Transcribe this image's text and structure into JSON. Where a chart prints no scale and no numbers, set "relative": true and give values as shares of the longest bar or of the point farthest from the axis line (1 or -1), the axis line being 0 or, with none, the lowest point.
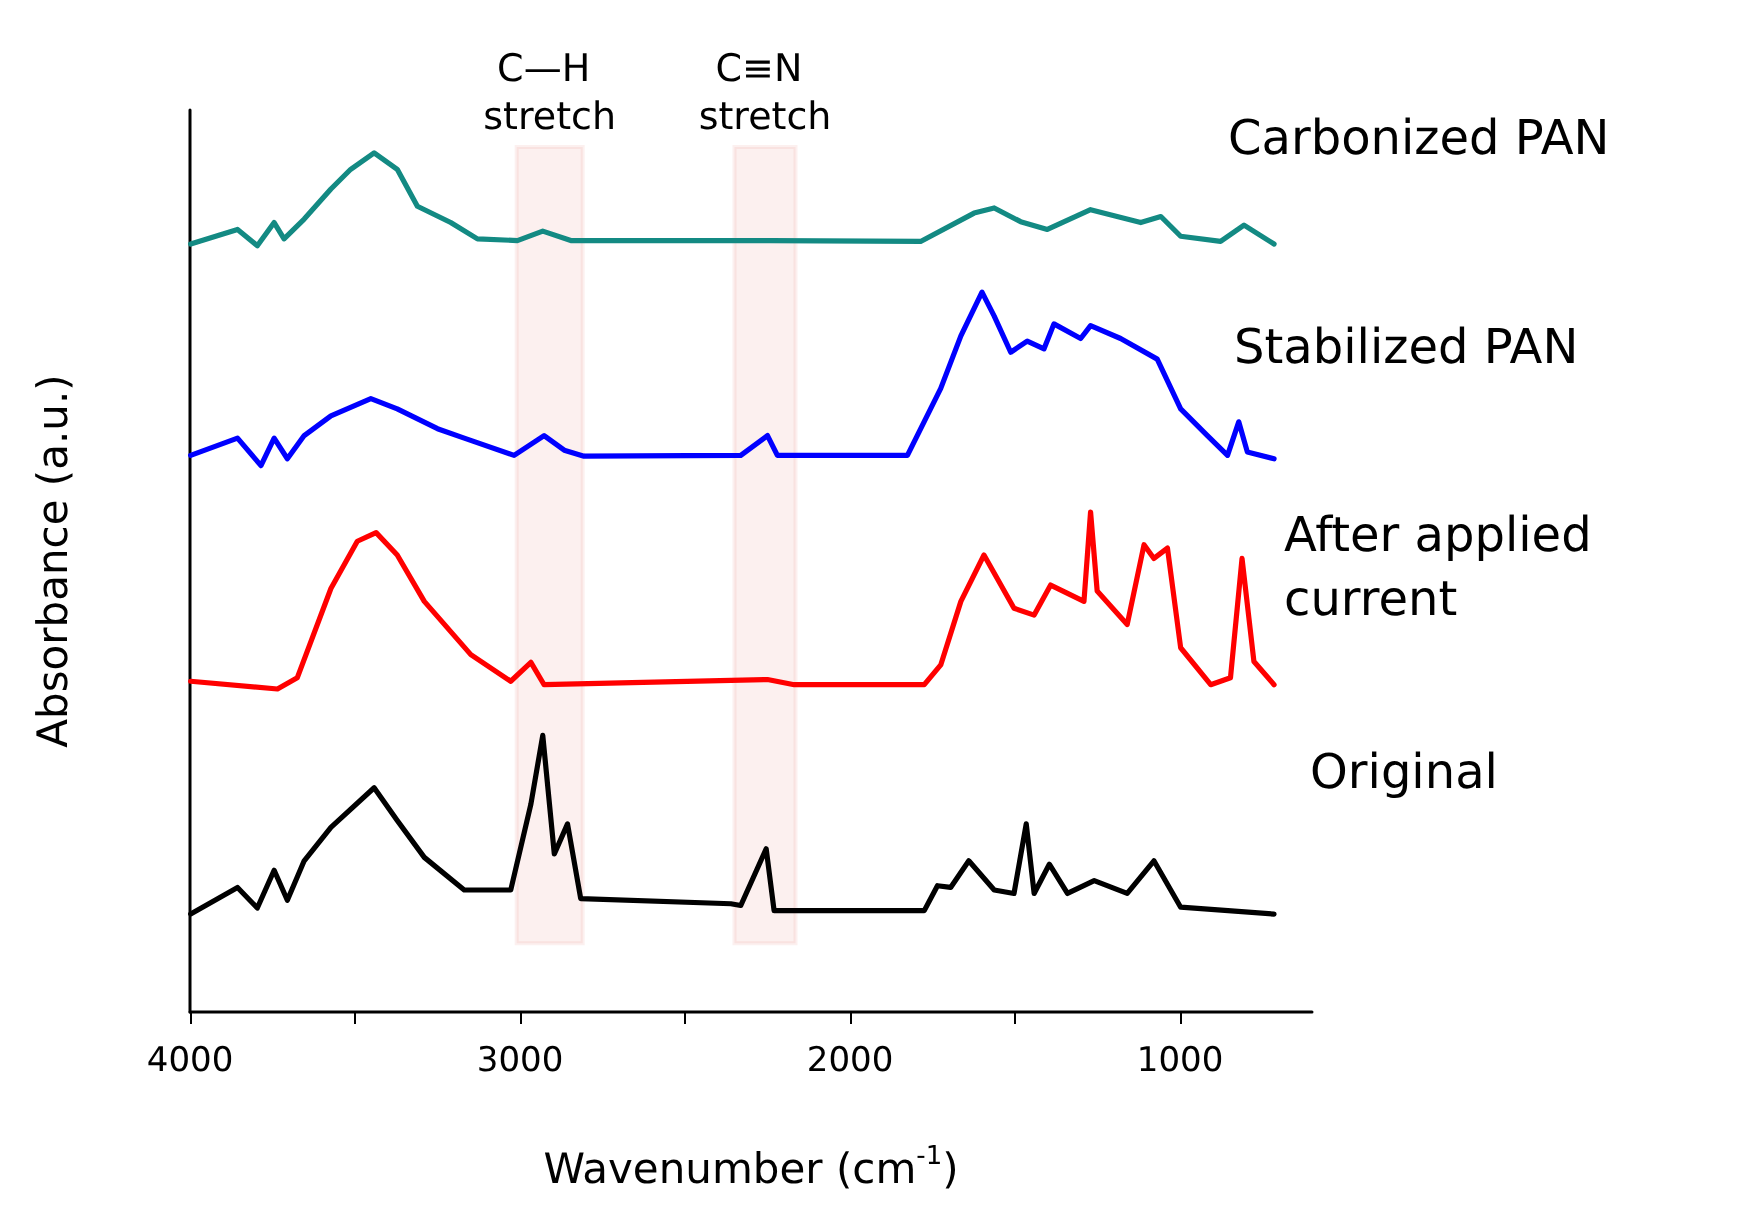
{
  "chart_data": {
    "type": "line",
    "relative": true,
    "xlabel": "Wavenumber (cm$^{-1}$)",
    "ylabel": "Absorbance (a.u.)",
    "xlim": [
      4000,
      600
    ],
    "xticks": [
      4000,
      {
        "value": 3500,
        "label": null
      },
      3000,
      {
        "value": 2500,
        "label": null
      },
      2000,
      {
        "value": 1500,
        "label": null
      },
      1000
    ],
    "grid": false,
    "legend": false,
    "marker": "none",
    "line_style": "solid",
    "bands": [
      {
        "axis": "x",
        "from": 3010,
        "to": 2810,
        "label": "C—H stretch",
        "color": "#d42a1a"
      },
      {
        "axis": "x",
        "from": 2350,
        "to": 2165,
        "label": "C≡N stretch",
        "color": "#d42a1a"
      }
    ],
    "series": [
      {
        "name": "Carbonized PAN",
        "color": "#138a83",
        "x": [
          3998,
          3856,
          3796,
          3745,
          3715,
          3654,
          3573,
          3513,
          3442,
          3372,
          3311,
          3210,
          3129,
          3008,
          2931,
          2846,
          2240,
          1786,
          1624,
          1563,
          1483,
          1402,
          1271,
          1119,
          1058,
          998,
          877,
          806,
          715
        ],
        "values": [
          0.894,
          0.911,
          0.892,
          0.919,
          0.9,
          0.923,
          0.958,
          0.981,
          1.0,
          0.981,
          0.938,
          0.919,
          0.9,
          0.898,
          0.909,
          0.898,
          0.898,
          0.897,
          0.93,
          0.936,
          0.92,
          0.911,
          0.934,
          0.919,
          0.926,
          0.903,
          0.897,
          0.916,
          0.894
        ]
      },
      {
        "name": "Stabilized PAN",
        "color": "#0000ff",
        "x": [
          3998,
          3856,
          3785,
          3745,
          3705,
          3654,
          3573,
          3452,
          3372,
          3250,
          3169,
          3018,
          2927,
          2866,
          2806,
          2331,
          2250,
          2220,
          1826,
          1725,
          1664,
          1600,
          1563,
          1513,
          1463,
          1412,
          1382,
          1301,
          1271,
          1180,
          1069,
          998,
          917,
          856,
          822,
          796,
          715
        ],
        "values": [
          0.648,
          0.668,
          0.636,
          0.668,
          0.644,
          0.671,
          0.694,
          0.714,
          0.702,
          0.679,
          0.668,
          0.648,
          0.671,
          0.654,
          0.647,
          0.648,
          0.671,
          0.648,
          0.648,
          0.726,
          0.787,
          0.838,
          0.81,
          0.768,
          0.781,
          0.772,
          0.801,
          0.784,
          0.799,
          0.784,
          0.76,
          0.702,
          0.671,
          0.648,
          0.687,
          0.652,
          0.644
        ]
      },
      {
        "name": "After applied current",
        "color": "#ff0000",
        "x": [
          3998,
          3735,
          3675,
          3573,
          3493,
          3436,
          3372,
          3290,
          3149,
          3028,
          2967,
          2927,
          2250,
          2169,
          1775,
          1725,
          1664,
          1594,
          1503,
          1442,
          1392,
          1291,
          1271,
          1251,
          1160,
          1109,
          1079,
          1038,
          998,
          907,
          847,
          812,
          776,
          715
        ],
        "values": [
          0.385,
          0.376,
          0.389,
          0.493,
          0.548,
          0.558,
          0.532,
          0.478,
          0.416,
          0.385,
          0.407,
          0.381,
          0.387,
          0.381,
          0.381,
          0.404,
          0.478,
          0.532,
          0.47,
          0.462,
          0.497,
          0.478,
          0.582,
          0.49,
          0.451,
          0.544,
          0.528,
          0.54,
          0.424,
          0.381,
          0.389,
          0.528,
          0.408,
          0.381
        ]
      },
      {
        "name": "Original",
        "color": "#000000",
        "x": [
          3998,
          3856,
          3796,
          3745,
          3705,
          3654,
          3573,
          3442,
          3372,
          3290,
          3169,
          3028,
          2967,
          2931,
          2896,
          2856,
          2816,
          2361,
          2331,
          2254,
          2230,
          1775,
          1735,
          1695,
          1640,
          1563,
          1503,
          1466,
          1442,
          1396,
          1341,
          1260,
          1160,
          1079,
          998,
          715
        ],
        "values": [
          0.114,
          0.145,
          0.121,
          0.165,
          0.13,
          0.176,
          0.215,
          0.261,
          0.223,
          0.18,
          0.142,
          0.142,
          0.242,
          0.322,
          0.184,
          0.219,
          0.132,
          0.126,
          0.124,
          0.19,
          0.118,
          0.118,
          0.147,
          0.145,
          0.176,
          0.142,
          0.138,
          0.219,
          0.138,
          0.172,
          0.138,
          0.153,
          0.138,
          0.176,
          0.122,
          0.114
        ]
      }
    ]
  }
}
